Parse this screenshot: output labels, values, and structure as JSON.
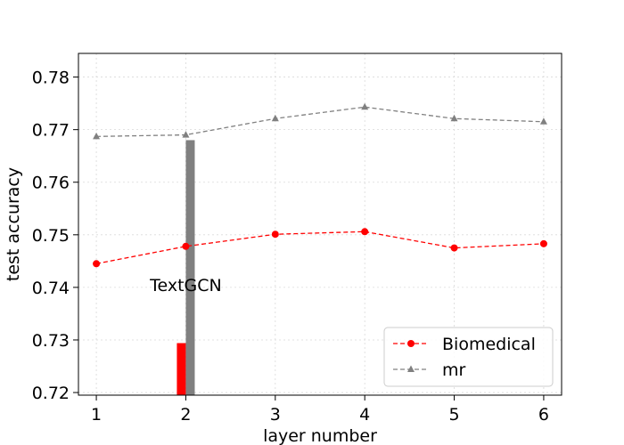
{
  "chart_data": {
    "type": "line",
    "xlabel": "layer number",
    "ylabel": "test accuracy",
    "x": [
      1,
      2,
      3,
      4,
      5,
      6
    ],
    "xlim": [
      0.8,
      6.2
    ],
    "ylim": [
      0.7195,
      0.7845
    ],
    "xticks": [
      "1",
      "2",
      "3",
      "4",
      "5",
      "6"
    ],
    "yticks": [
      "0.72",
      "0.73",
      "0.74",
      "0.75",
      "0.76",
      "0.77",
      "0.78"
    ],
    "grid": true,
    "legend_position": "lower-right",
    "series": [
      {
        "name": "Biomedical",
        "values": [
          0.7445,
          0.7478,
          0.7501,
          0.7506,
          0.7475,
          0.7483
        ],
        "color": "#ff0000",
        "marker": "circle",
        "linestyle": "dashed"
      },
      {
        "name": "mr",
        "values": [
          0.7687,
          0.769,
          0.7721,
          0.7743,
          0.7721,
          0.7715
        ],
        "color": "#808080",
        "marker": "triangle",
        "linestyle": "dashed"
      }
    ],
    "bars": [
      {
        "series": "Biomedical",
        "x": 1.95,
        "value": 0.7294,
        "color": "#ff0000"
      },
      {
        "series": "mr",
        "x": 2.05,
        "value": 0.768,
        "color": "#808080"
      }
    ],
    "annotation": {
      "text": "TextGCN",
      "x": 2.0,
      "y": 0.7405
    }
  }
}
